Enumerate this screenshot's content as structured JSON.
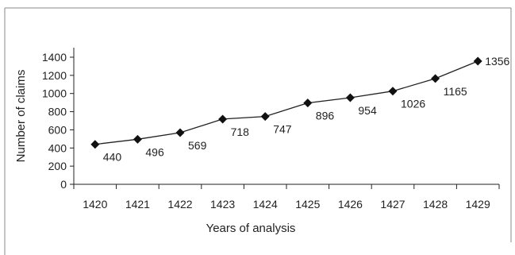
{
  "chart_data": {
    "type": "line",
    "xlabel": "Years of analysis",
    "ylabel": "Number of claims",
    "categories": [
      "1420",
      "1421",
      "1422",
      "1423",
      "1424",
      "1425",
      "1426",
      "1427",
      "1428",
      "1429"
    ],
    "series": [
      {
        "values": [
          440,
          496,
          569,
          718,
          747,
          896,
          954,
          1026,
          1165,
          1356
        ]
      }
    ],
    "data_labels": [
      "440",
      "496",
      "569",
      "718",
      "747",
      "896",
      "954",
      "1026",
      "1165",
      "1356"
    ],
    "y_ticks": [
      0,
      200,
      400,
      600,
      800,
      1000,
      1200,
      1400
    ],
    "ylim": [
      0,
      1400
    ],
    "marker": "diamond",
    "grid": false,
    "legend": "none",
    "line_color": "#222222"
  }
}
